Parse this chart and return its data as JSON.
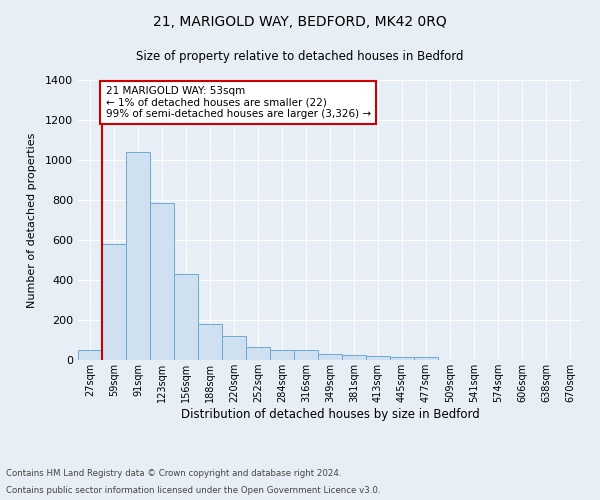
{
  "title": "21, MARIGOLD WAY, BEDFORD, MK42 0RQ",
  "subtitle": "Size of property relative to detached houses in Bedford",
  "xlabel": "Distribution of detached houses by size in Bedford",
  "ylabel": "Number of detached properties",
  "footnote1": "Contains HM Land Registry data © Crown copyright and database right 2024.",
  "footnote2": "Contains public sector information licensed under the Open Government Licence v3.0.",
  "bin_labels": [
    "27sqm",
    "59sqm",
    "91sqm",
    "123sqm",
    "156sqm",
    "188sqm",
    "220sqm",
    "252sqm",
    "284sqm",
    "316sqm",
    "349sqm",
    "381sqm",
    "413sqm",
    "445sqm",
    "477sqm",
    "509sqm",
    "541sqm",
    "574sqm",
    "606sqm",
    "638sqm",
    "670sqm"
  ],
  "bar_heights": [
    50,
    578,
    1040,
    783,
    430,
    178,
    120,
    65,
    50,
    50,
    28,
    25,
    20,
    13,
    15,
    0,
    0,
    0,
    0,
    0,
    0
  ],
  "bar_color": "#cfe0f1",
  "bar_edge_color": "#6aaad4",
  "highlight_color": "#cc0000",
  "annotation_title": "21 MARIGOLD WAY: 53sqm",
  "annotation_line1": "← 1% of detached houses are smaller (22)",
  "annotation_line2": "99% of semi-detached houses are larger (3,326) →",
  "annotation_box_color": "#ffffff",
  "annotation_box_edge": "#cc0000",
  "ylim": [
    0,
    1400
  ],
  "yticks": [
    0,
    200,
    400,
    600,
    800,
    1000,
    1200,
    1400
  ],
  "bg_color": "#e8eef5",
  "plot_bg_color": "#e8eef5",
  "grid_color": "#ffffff"
}
